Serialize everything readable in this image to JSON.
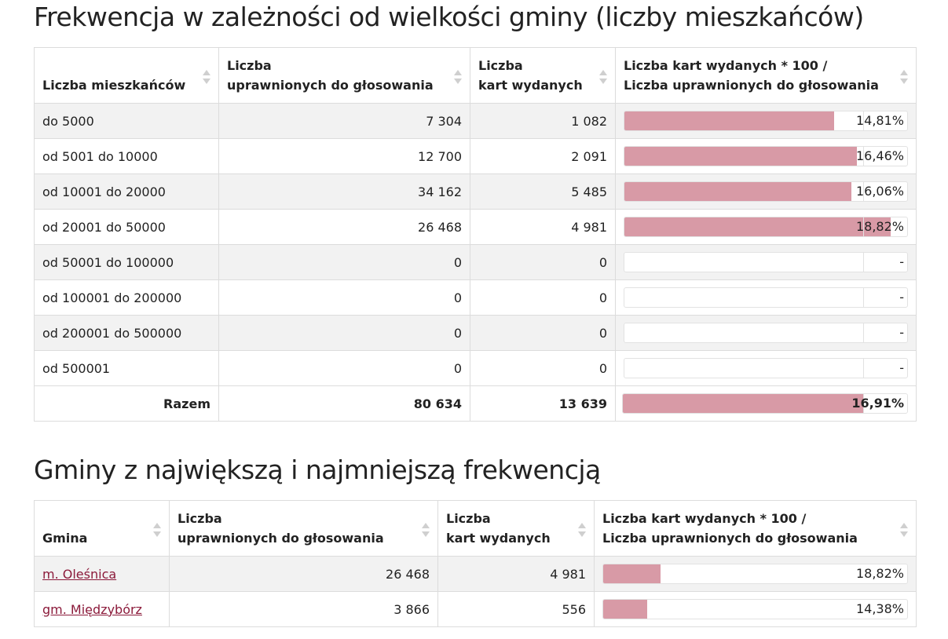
{
  "section1": {
    "title": "Frekwencja w zależności od wielkości gminy (liczby mieszkańców)",
    "headers": {
      "col1": "Liczba mieszkańców",
      "col2_line1": "Liczba",
      "col2_line2": "uprawnionych do głosowania",
      "col3_line1": "Liczba",
      "col3_line2": "kart wydanych",
      "col4_line1": "Liczba kart wydanych * 100 /",
      "col4_line2": "Liczba uprawnionych do głosowania"
    },
    "rows": [
      {
        "label": "do 5000",
        "uprawnieni": "7 304",
        "karty": "1 082",
        "frekwencja": "14,81%",
        "pct": 14.81
      },
      {
        "label": "od 5001 do 10000",
        "uprawnieni": "12 700",
        "karty": "2 091",
        "frekwencja": "16,46%",
        "pct": 16.46
      },
      {
        "label": "od 10001 do 20000",
        "uprawnieni": "34 162",
        "karty": "5 485",
        "frekwencja": "16,06%",
        "pct": 16.06
      },
      {
        "label": "od 20001 do 50000",
        "uprawnieni": "26 468",
        "karty": "4 981",
        "frekwencja": "18,82%",
        "pct": 18.82
      },
      {
        "label": "od 50001 do 100000",
        "uprawnieni": "0",
        "karty": "0",
        "frekwencja": "-",
        "pct": 0
      },
      {
        "label": "od 100001 do 200000",
        "uprawnieni": "0",
        "karty": "0",
        "frekwencja": "-",
        "pct": 0
      },
      {
        "label": "od 200001 do 500000",
        "uprawnieni": "0",
        "karty": "0",
        "frekwencja": "-",
        "pct": 0
      },
      {
        "label": "od 500001",
        "uprawnieni": "0",
        "karty": "0",
        "frekwencja": "-",
        "pct": 0
      }
    ],
    "total": {
      "label": "Razem",
      "uprawnieni": "80 634",
      "karty": "13 639",
      "frekwencja": "16,91%",
      "pct": 16.91
    }
  },
  "section2": {
    "title": "Gminy z największą i najmniejszą frekwencją",
    "headers": {
      "col1": "Gmina",
      "col2_line1": "Liczba",
      "col2_line2": "uprawnionych do głosowania",
      "col3_line1": "Liczba",
      "col3_line2": "kart wydanych",
      "col4_line1": "Liczba kart wydanych * 100 /",
      "col4_line2": "Liczba uprawnionych do głosowania"
    },
    "rows": [
      {
        "label": "m. Oleśnica",
        "uprawnieni": "26 468",
        "karty": "4 981",
        "frekwencja": "18,82%",
        "pct": 18.82
      },
      {
        "label": "gm. Międzybórz",
        "uprawnieni": "3 866",
        "karty": "556",
        "frekwencja": "14,38%",
        "pct": 14.38
      }
    ]
  },
  "colors": {
    "bar_fill": "#d89aa6",
    "link": "#8b1a3a",
    "row_alt": "#f2f2f2"
  }
}
